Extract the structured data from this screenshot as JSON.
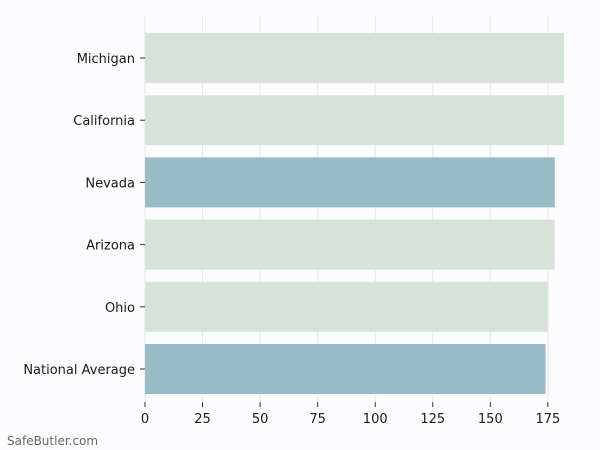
{
  "chart_data": {
    "type": "bar",
    "orientation": "horizontal",
    "categories": [
      "Michigan",
      "California",
      "Nevada",
      "Arizona",
      "Ohio",
      "National Average"
    ],
    "values": [
      182,
      182,
      178,
      178,
      175,
      174
    ],
    "highlight": [
      false,
      false,
      true,
      false,
      false,
      true
    ],
    "xlim": [
      0,
      182
    ],
    "xticks": [
      0,
      25,
      50,
      75,
      100,
      125,
      150,
      175
    ],
    "title": "",
    "xlabel": "",
    "ylabel": "",
    "grid": "vertical",
    "legend": "none",
    "colors": {
      "default": "#d5e3d8",
      "highlight": "#98bcc5",
      "grid": "#e6e6e6",
      "axis": "#333333",
      "background": "#fcfcff"
    }
  },
  "footer": {
    "watermark": "SafeButler.com"
  }
}
